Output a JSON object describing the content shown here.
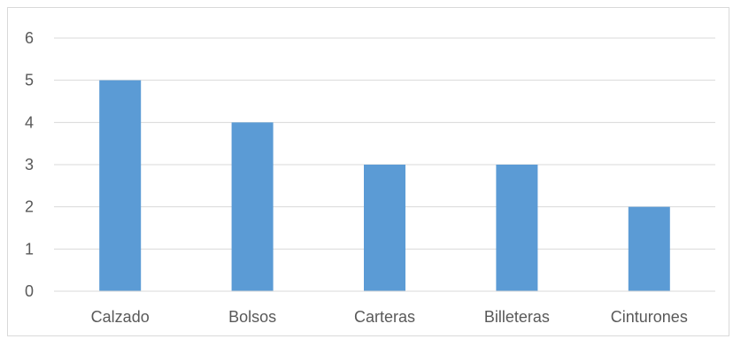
{
  "chart_data": {
    "type": "bar",
    "categories": [
      "Calzado",
      "Bolsos",
      "Carteras",
      "Billeteras",
      "Cinturones"
    ],
    "values": [
      5,
      4,
      3,
      3,
      2
    ],
    "title": "",
    "xlabel": "",
    "ylabel": "",
    "ylim": [
      0,
      6
    ],
    "yticks": [
      "0",
      "1",
      "2",
      "3",
      "4",
      "5",
      "6"
    ],
    "grid": true,
    "legend": "none",
    "colors": {
      "bar": "#5b9bd5",
      "grid": "#d9d9d9",
      "axis_text": "#595959"
    }
  }
}
